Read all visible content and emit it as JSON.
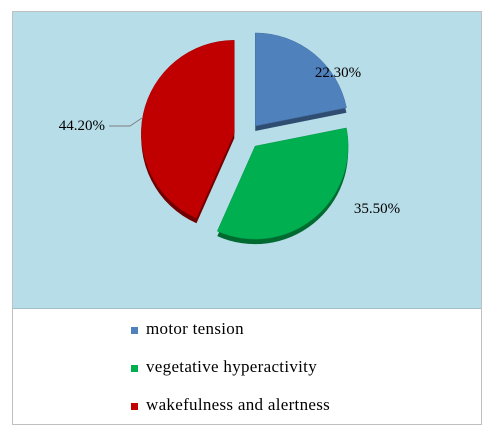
{
  "chart_data": {
    "type": "pie",
    "title": "",
    "slices": [
      {
        "label": "motor tension",
        "value": 22.3,
        "display": "22.30%",
        "color": "#4f81bd"
      },
      {
        "label": "vegetative hyperactivity",
        "value": 35.5,
        "display": "35.50%",
        "color": "#00b050"
      },
      {
        "label": "wakefulness and alertness",
        "value": 44.2,
        "display": "44.20%",
        "color": "#c00000"
      }
    ],
    "exploded": true,
    "legend_position": "bottom",
    "background_color": "#b7dde8"
  }
}
